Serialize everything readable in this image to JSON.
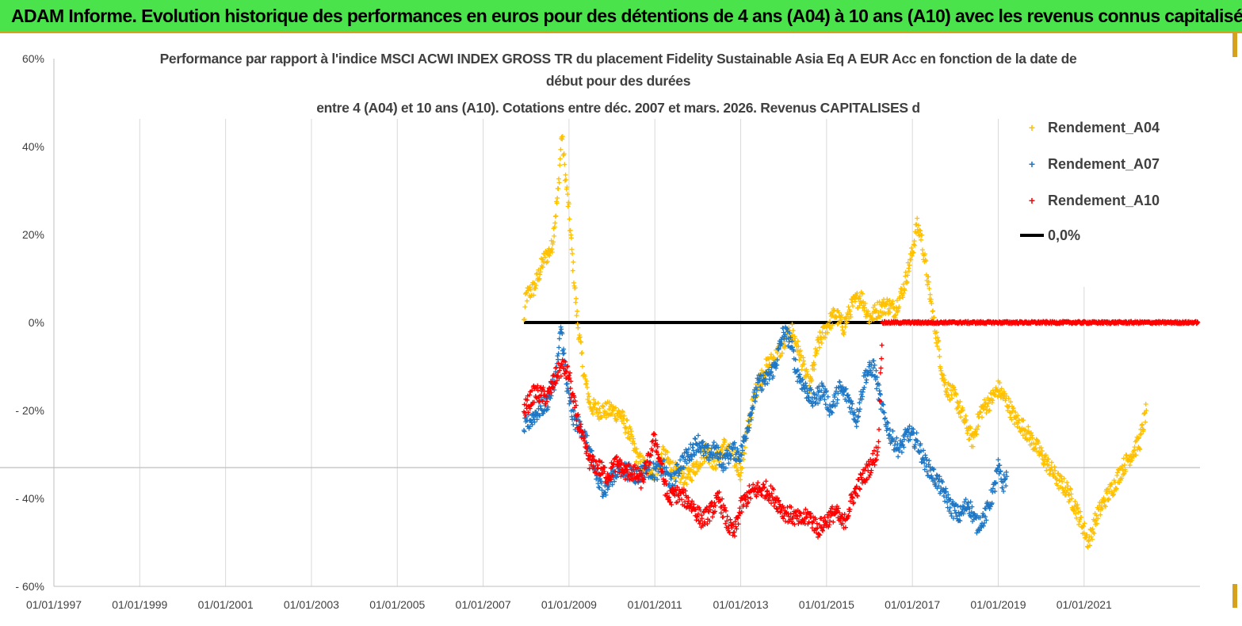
{
  "header": {
    "banner_title": "ADAM Informe. Evolution historique des performances en euros pour des détentions de 4 ans (A04) à 10 ans (A10) avec les revenus connus capitalisés"
  },
  "colors": {
    "banner_bg": "#4be34b",
    "A04": "#ffc000",
    "A07": "#1f77c4",
    "A10": "#ff0000",
    "zero_line": "#000000",
    "grid": "#d9d9d9"
  },
  "chart_data": {
    "type": "scatter",
    "title_lines": [
      "Performance par rapport à l'indice MSCI ACWI INDEX GROSS TR  du placement Fidelity Sustainable Asia Eq A EUR Acc en fonction de la date de",
      "début pour des durées",
      "entre 4 (A04) et 10 ans (A10). Cotations entre déc. 2007 et mars. 2026. Revenus CAPITALISES d"
    ],
    "xlabel": "",
    "ylabel": "",
    "xlim": [
      1997.0,
      2023.7
    ],
    "ylim": [
      -60,
      60
    ],
    "y_ticks": [
      60,
      40,
      20,
      0,
      -20,
      -40,
      -60
    ],
    "y_tick_labels": [
      "60%",
      "40%",
      "20%",
      "0%",
      "- 20%",
      "- 40%",
      "- 60%"
    ],
    "x_ticks": [
      1997,
      1999,
      2001,
      2003,
      2005,
      2007,
      2009,
      2011,
      2013,
      2015,
      2017,
      2019,
      2021
    ],
    "x_tick_labels": [
      "01/01/1997",
      "01/01/1999",
      "01/01/2001",
      "01/01/2003",
      "01/01/2005",
      "01/01/2007",
      "01/01/2009",
      "01/01/2011",
      "01/01/2013",
      "01/01/2015",
      "01/01/2017",
      "01/01/2019",
      "01/01/2021"
    ],
    "series": [
      {
        "name": "Rendement_A04",
        "color": "#ffc000",
        "points": [
          [
            2007.95,
            0
          ],
          [
            2008.0,
            6
          ],
          [
            2008.2,
            8
          ],
          [
            2008.4,
            14
          ],
          [
            2008.6,
            17
          ],
          [
            2008.75,
            30
          ],
          [
            2008.83,
            43
          ],
          [
            2008.92,
            33
          ],
          [
            2009.0,
            25
          ],
          [
            2009.1,
            12
          ],
          [
            2009.2,
            0
          ],
          [
            2009.35,
            -12
          ],
          [
            2009.5,
            -19
          ],
          [
            2009.7,
            -20
          ],
          [
            2010.0,
            -20
          ],
          [
            2010.2,
            -21
          ],
          [
            2010.4,
            -25
          ],
          [
            2010.6,
            -31
          ],
          [
            2010.8,
            -33
          ],
          [
            2011.0,
            -34
          ],
          [
            2011.2,
            -30
          ],
          [
            2011.4,
            -33
          ],
          [
            2011.6,
            -35
          ],
          [
            2011.8,
            -35
          ],
          [
            2012.0,
            -32
          ],
          [
            2012.2,
            -29
          ],
          [
            2012.4,
            -32
          ],
          [
            2012.6,
            -28
          ],
          [
            2012.8,
            -30
          ],
          [
            2013.0,
            -34
          ],
          [
            2013.2,
            -22
          ],
          [
            2013.4,
            -14
          ],
          [
            2013.6,
            -10
          ],
          [
            2013.8,
            -8
          ],
          [
            2014.0,
            -5
          ],
          [
            2014.2,
            -2
          ],
          [
            2014.4,
            -8
          ],
          [
            2014.6,
            -15
          ],
          [
            2014.8,
            -5
          ],
          [
            2015.0,
            -1
          ],
          [
            2015.2,
            2
          ],
          [
            2015.4,
            -1
          ],
          [
            2015.6,
            4
          ],
          [
            2015.8,
            6
          ],
          [
            2016.0,
            1
          ],
          [
            2016.2,
            3
          ],
          [
            2016.4,
            4
          ],
          [
            2016.6,
            3
          ],
          [
            2016.8,
            8
          ],
          [
            2017.0,
            16
          ],
          [
            2017.1,
            22
          ],
          [
            2017.2,
            20
          ],
          [
            2017.35,
            10
          ],
          [
            2017.5,
            0
          ],
          [
            2017.6,
            -5
          ],
          [
            2017.7,
            -12
          ],
          [
            2017.8,
            -15
          ],
          [
            2018.0,
            -17
          ],
          [
            2018.2,
            -22
          ],
          [
            2018.4,
            -27
          ],
          [
            2018.6,
            -20
          ],
          [
            2018.8,
            -18
          ],
          [
            2019.0,
            -15
          ],
          [
            2019.2,
            -18
          ],
          [
            2019.4,
            -22
          ],
          [
            2019.6,
            -24
          ],
          [
            2019.8,
            -27
          ],
          [
            2020.0,
            -30
          ],
          [
            2020.2,
            -33
          ],
          [
            2020.4,
            -36
          ],
          [
            2020.6,
            -38
          ],
          [
            2020.8,
            -42
          ],
          [
            2021.0,
            -47
          ],
          [
            2021.1,
            -50
          ],
          [
            2021.3,
            -44
          ],
          [
            2021.5,
            -40
          ],
          [
            2021.7,
            -37
          ],
          [
            2021.9,
            -33
          ],
          [
            2022.1,
            -30
          ],
          [
            2022.3,
            -27
          ],
          [
            2022.45,
            -20
          ]
        ]
      },
      {
        "name": "Rendement_A07",
        "color": "#1f77c4",
        "points": [
          [
            2007.95,
            -24
          ],
          [
            2008.2,
            -21
          ],
          [
            2008.5,
            -18
          ],
          [
            2008.7,
            -12
          ],
          [
            2008.82,
            -1
          ],
          [
            2008.95,
            -15
          ],
          [
            2009.1,
            -22
          ],
          [
            2009.3,
            -24
          ],
          [
            2009.5,
            -30
          ],
          [
            2009.7,
            -37
          ],
          [
            2009.85,
            -38
          ],
          [
            2010.0,
            -35
          ],
          [
            2010.2,
            -33
          ],
          [
            2010.4,
            -34
          ],
          [
            2010.6,
            -35
          ],
          [
            2010.8,
            -33
          ],
          [
            2011.0,
            -34
          ],
          [
            2011.2,
            -33
          ],
          [
            2011.4,
            -37
          ],
          [
            2011.6,
            -32
          ],
          [
            2011.8,
            -30
          ],
          [
            2012.0,
            -27
          ],
          [
            2012.2,
            -30
          ],
          [
            2012.4,
            -29
          ],
          [
            2012.6,
            -32
          ],
          [
            2012.8,
            -29
          ],
          [
            2013.0,
            -30
          ],
          [
            2013.2,
            -22
          ],
          [
            2013.4,
            -14
          ],
          [
            2013.6,
            -13
          ],
          [
            2013.8,
            -10
          ],
          [
            2014.0,
            -2
          ],
          [
            2014.15,
            -4
          ],
          [
            2014.3,
            -11
          ],
          [
            2014.5,
            -15
          ],
          [
            2014.7,
            -18
          ],
          [
            2014.9,
            -15
          ],
          [
            2015.1,
            -20
          ],
          [
            2015.3,
            -15
          ],
          [
            2015.5,
            -17
          ],
          [
            2015.7,
            -22
          ],
          [
            2015.9,
            -12
          ],
          [
            2016.1,
            -10
          ],
          [
            2016.3,
            -20
          ],
          [
            2016.5,
            -26
          ],
          [
            2016.7,
            -29
          ],
          [
            2016.9,
            -25
          ],
          [
            2017.1,
            -27
          ],
          [
            2017.3,
            -32
          ],
          [
            2017.5,
            -35
          ],
          [
            2017.7,
            -38
          ],
          [
            2017.9,
            -42
          ],
          [
            2018.1,
            -44
          ],
          [
            2018.3,
            -41
          ],
          [
            2018.5,
            -46
          ],
          [
            2018.7,
            -44
          ],
          [
            2018.9,
            -38
          ],
          [
            2019.0,
            -33
          ],
          [
            2019.1,
            -37
          ],
          [
            2019.2,
            -35
          ]
        ]
      },
      {
        "name": "Rendement_A10",
        "color": "#ff0000",
        "points": [
          [
            2007.95,
            -20
          ],
          [
            2008.2,
            -16
          ],
          [
            2008.5,
            -17
          ],
          [
            2008.7,
            -12
          ],
          [
            2008.85,
            -10
          ],
          [
            2009.0,
            -12
          ],
          [
            2009.1,
            -18
          ],
          [
            2009.3,
            -26
          ],
          [
            2009.5,
            -32
          ],
          [
            2009.7,
            -33
          ],
          [
            2009.9,
            -35
          ],
          [
            2010.1,
            -32
          ],
          [
            2010.3,
            -34
          ],
          [
            2010.5,
            -34
          ],
          [
            2010.7,
            -36
          ],
          [
            2010.9,
            -30
          ],
          [
            2011.0,
            -26
          ],
          [
            2011.15,
            -33
          ],
          [
            2011.3,
            -40
          ],
          [
            2011.5,
            -39
          ],
          [
            2011.7,
            -40
          ],
          [
            2011.9,
            -42
          ],
          [
            2012.1,
            -45
          ],
          [
            2012.3,
            -43
          ],
          [
            2012.5,
            -40
          ],
          [
            2012.7,
            -46
          ],
          [
            2012.85,
            -48
          ],
          [
            2013.0,
            -42
          ],
          [
            2013.2,
            -39
          ],
          [
            2013.4,
            -38
          ],
          [
            2013.6,
            -38
          ],
          [
            2013.8,
            -40
          ],
          [
            2014.0,
            -43
          ],
          [
            2014.2,
            -44
          ],
          [
            2014.4,
            -45
          ],
          [
            2014.6,
            -44
          ],
          [
            2014.8,
            -47
          ],
          [
            2015.0,
            -45
          ],
          [
            2015.2,
            -43
          ],
          [
            2015.4,
            -46
          ],
          [
            2015.6,
            -40
          ],
          [
            2015.8,
            -36
          ],
          [
            2016.0,
            -33
          ],
          [
            2016.1,
            -31
          ],
          [
            2016.2,
            -29
          ],
          [
            2016.3,
            0
          ],
          [
            2017.0,
            0
          ],
          [
            2018.0,
            0
          ],
          [
            2019.0,
            0
          ],
          [
            2020.0,
            0
          ],
          [
            2021.0,
            0
          ],
          [
            2022.0,
            0
          ],
          [
            2023.0,
            0
          ],
          [
            2023.65,
            0
          ]
        ]
      },
      {
        "name": "0,0%",
        "color": "#000000",
        "type": "line",
        "points": [
          [
            2007.95,
            0
          ],
          [
            2023.65,
            0
          ]
        ]
      }
    ],
    "legend": {
      "position": "top-right",
      "entries": [
        {
          "label": "Rendement_A04",
          "marker": "+",
          "color": "#ffc000"
        },
        {
          "label": "Rendement_A07",
          "marker": "+",
          "color": "#1f77c4"
        },
        {
          "label": "Rendement_A10",
          "marker": "+",
          "color": "#ff0000"
        },
        {
          "label": "0,0%",
          "marker": "line",
          "color": "#000000"
        }
      ]
    }
  }
}
